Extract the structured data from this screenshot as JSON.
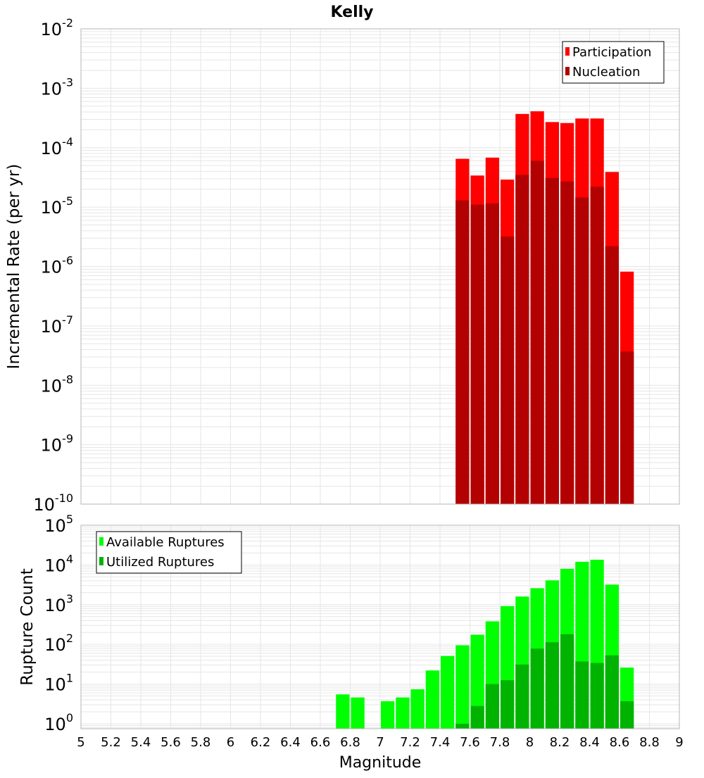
{
  "title": "Kelly",
  "colors": {
    "participation": "#ff0000",
    "nucleation": "#b30000",
    "available": "#00ff00",
    "utilized": "#00b300",
    "grid": "#e6e6e6",
    "frame": "#b5b5b5"
  },
  "chart_data": [
    {
      "type": "bar",
      "panel": "top",
      "ylabel": "Incremental Rate (per yr)",
      "y_scale": "log",
      "ylim": [
        1e-10,
        0.01
      ],
      "y_tick_exponents": [
        -10,
        -9,
        -8,
        -7,
        -6,
        -5,
        -4,
        -3,
        -2
      ],
      "xlim": [
        5,
        9
      ],
      "x": [
        7.55,
        7.65,
        7.75,
        7.85,
        7.95,
        8.05,
        8.15,
        8.25,
        8.35,
        8.45,
        8.55,
        8.65
      ],
      "series": [
        {
          "name": "Participation",
          "color": "#ff0000",
          "values": [
            6.5e-05,
            3.4e-05,
            6.8e-05,
            2.9e-05,
            0.00037,
            0.00041,
            0.00027,
            0.00026,
            0.00031,
            0.00031,
            3.9e-05,
            8.2e-07
          ]
        },
        {
          "name": "Nucleation",
          "color": "#b30000",
          "values": [
            1.3e-05,
            1.1e-05,
            1.15e-05,
            3.2e-06,
            3.5e-05,
            6e-05,
            3.1e-05,
            2.7e-05,
            1.45e-05,
            2.2e-05,
            2.2e-06,
            3.7e-08
          ]
        }
      ],
      "legend": {
        "position": "top-right",
        "entries": [
          "Participation",
          "Nucleation"
        ]
      },
      "grid": true
    },
    {
      "type": "bar",
      "panel": "bottom",
      "xlabel": "Magnitude",
      "ylabel": "Rupture Count",
      "y_scale": "log",
      "ylim": [
        0.75,
        100000
      ],
      "y_tick_exponents": [
        0,
        1,
        2,
        3,
        4,
        5
      ],
      "xlim": [
        5,
        9
      ],
      "x_ticks": [
        "5",
        "5.2",
        "5.4",
        "5.6",
        "5.8",
        "6",
        "6.2",
        "6.4",
        "6.6",
        "6.8",
        "7",
        "7.2",
        "7.4",
        "7.6",
        "7.8",
        "8",
        "8.2",
        "8.4",
        "8.6",
        "8.8",
        "9"
      ],
      "x": [
        6.75,
        6.85,
        6.95,
        7.05,
        7.15,
        7.25,
        7.35,
        7.45,
        7.55,
        7.65,
        7.75,
        7.85,
        7.95,
        8.05,
        8.15,
        8.25,
        8.35,
        8.45,
        8.55,
        8.65
      ],
      "series": [
        {
          "name": "Available Ruptures",
          "color": "#00ff00",
          "values": [
            5.5,
            4.6,
            0,
            3.7,
            4.6,
            7.4,
            22,
            51,
            95,
            175,
            380,
            920,
            1600,
            2600,
            4100,
            8000,
            12000,
            13500,
            3200,
            26
          ]
        },
        {
          "name": "Utilized Ruptures",
          "color": "#00b300",
          "values": [
            0,
            0,
            0,
            0,
            0,
            0,
            0,
            0,
            1,
            2.8,
            10,
            12.5,
            31,
            78,
            113,
            180,
            37,
            34,
            53,
            3.7
          ]
        }
      ],
      "legend": {
        "position": "top-left",
        "entries": [
          "Available Ruptures",
          "Utilized Ruptures"
        ]
      },
      "grid": true
    }
  ]
}
